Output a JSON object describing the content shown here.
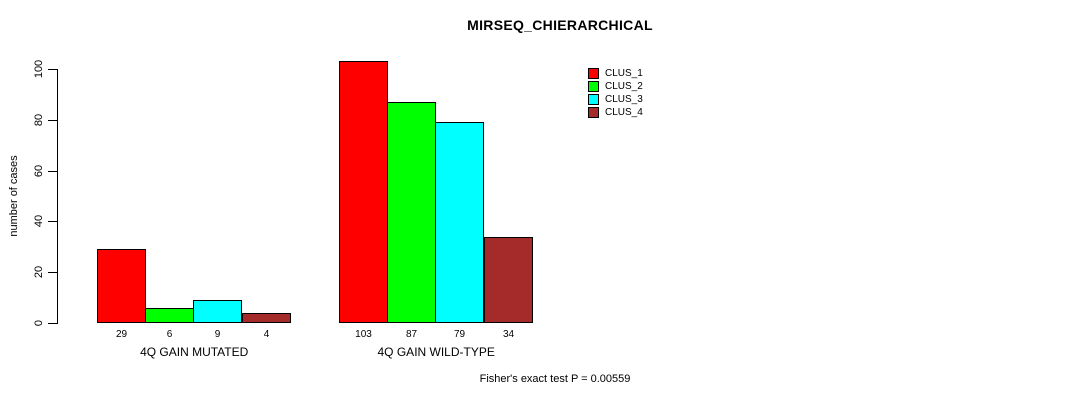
{
  "title": "MIRSEQ_CHIERARCHICAL",
  "footer": "Fisher's exact test P = 0.00559",
  "chart_data": {
    "type": "bar",
    "title": "MIRSEQ_CHIERARCHICAL",
    "xlabel": "",
    "ylabel": "number of cases",
    "categories": [
      "4Q GAIN MUTATED",
      "4Q GAIN WILD-TYPE"
    ],
    "series": [
      {
        "name": "CLUS_1",
        "color": "#ff0000",
        "values": [
          29,
          103
        ]
      },
      {
        "name": "CLUS_2",
        "color": "#00ff00",
        "values": [
          6,
          87
        ]
      },
      {
        "name": "CLUS_3",
        "color": "#00ffff",
        "values": [
          9,
          79
        ]
      },
      {
        "name": "CLUS_4",
        "color": "#a52a2a",
        "values": [
          4,
          34
        ]
      }
    ],
    "yticks": [
      0,
      20,
      40,
      60,
      80,
      100
    ],
    "ylim": [
      0,
      103
    ],
    "grid": false,
    "bar_value_labels_shown": true,
    "legend": {
      "position": "top-right",
      "entries": [
        "CLUS_1",
        "CLUS_2",
        "CLUS_3",
        "CLUS_4"
      ]
    },
    "annotation": "Fisher's exact test P = 0.00559"
  }
}
